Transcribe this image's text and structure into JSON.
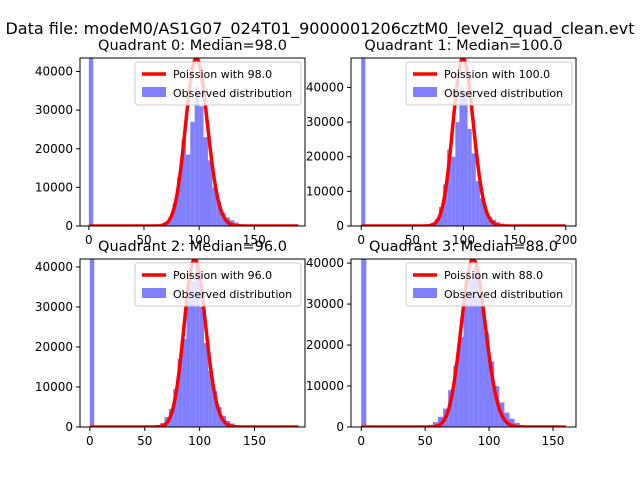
{
  "figure": {
    "suptitle": "Data file: modeM0/AS1G07_024T01_9000001206cztM0_level2_quad_clean.evt"
  },
  "colors": {
    "histogram": "#7f7fff",
    "poisson": "#ff0000",
    "axes": "#000000",
    "background": "#ffffff"
  },
  "chart_data": [
    {
      "type": "bar",
      "title": "Quadrant 0: Median=98.0",
      "median": 98.0,
      "xlim": [
        -8,
        196
      ],
      "ylim": [
        0,
        43500
      ],
      "xticks": [
        0,
        50,
        100,
        150
      ],
      "yticks": [
        0,
        10000,
        20000,
        30000,
        40000
      ],
      "bin_width": 4,
      "legend": {
        "placement": "upper right",
        "entries": [
          "Poission with 98.0",
          "Observed distribution"
        ]
      },
      "series": [
        {
          "name": "Poission with 98.0",
          "kind": "line",
          "lambda": 98.0,
          "x_range": [
            0,
            190
          ]
        },
        {
          "name": "Observed distribution",
          "kind": "histogram",
          "bins": [
            {
              "x": 0,
              "value": 43500
            },
            {
              "x": 64,
              "value": 600
            },
            {
              "x": 68,
              "value": 1000
            },
            {
              "x": 72,
              "value": 2200
            },
            {
              "x": 76,
              "value": 6000
            },
            {
              "x": 80,
              "value": 12500
            },
            {
              "x": 84,
              "value": 22500
            },
            {
              "x": 88,
              "value": 18500
            },
            {
              "x": 92,
              "value": 27000
            },
            {
              "x": 96,
              "value": 36000
            },
            {
              "x": 100,
              "value": 31000
            },
            {
              "x": 104,
              "value": 23000
            },
            {
              "x": 108,
              "value": 17000
            },
            {
              "x": 112,
              "value": 10000
            },
            {
              "x": 116,
              "value": 6500
            },
            {
              "x": 120,
              "value": 3500
            },
            {
              "x": 124,
              "value": 2200
            },
            {
              "x": 128,
              "value": 1500
            },
            {
              "x": 132,
              "value": 900
            },
            {
              "x": 136,
              "value": 500
            },
            {
              "x": 140,
              "value": 300
            },
            {
              "x": 144,
              "value": 150
            }
          ]
        }
      ]
    },
    {
      "type": "bar",
      "title": "Quadrant 1: Median=100.0",
      "median": 100.0,
      "xlim": [
        -10,
        210
      ],
      "ylim": [
        0,
        48500
      ],
      "xticks": [
        0,
        50,
        100,
        150,
        200
      ],
      "yticks": [
        0,
        10000,
        20000,
        30000,
        40000
      ],
      "bin_width": 4,
      "legend": {
        "placement": "upper right",
        "entries": [
          "Poission with 100.0",
          "Observed distribution"
        ]
      },
      "series": [
        {
          "name": "Poission with 100.0",
          "kind": "line",
          "lambda": 100.0,
          "x_range": [
            0,
            200
          ]
        },
        {
          "name": "Observed distribution",
          "kind": "histogram",
          "bins": [
            {
              "x": 0,
              "value": 48500
            },
            {
              "x": 64,
              "value": 500
            },
            {
              "x": 68,
              "value": 900
            },
            {
              "x": 72,
              "value": 2000
            },
            {
              "x": 76,
              "value": 5500
            },
            {
              "x": 80,
              "value": 12000
            },
            {
              "x": 84,
              "value": 22000
            },
            {
              "x": 88,
              "value": 20000
            },
            {
              "x": 92,
              "value": 30000
            },
            {
              "x": 96,
              "value": 40000
            },
            {
              "x": 100,
              "value": 39000
            },
            {
              "x": 104,
              "value": 28000
            },
            {
              "x": 108,
              "value": 21000
            },
            {
              "x": 112,
              "value": 13000
            },
            {
              "x": 116,
              "value": 8000
            },
            {
              "x": 120,
              "value": 4500
            },
            {
              "x": 124,
              "value": 2700
            },
            {
              "x": 128,
              "value": 1800
            },
            {
              "x": 132,
              "value": 1100
            },
            {
              "x": 136,
              "value": 700
            },
            {
              "x": 140,
              "value": 400
            },
            {
              "x": 144,
              "value": 200
            }
          ]
        }
      ]
    },
    {
      "type": "bar",
      "title": "Quadrant 2: Median=96.0",
      "median": 96.0,
      "xlim": [
        -9,
        196
      ],
      "ylim": [
        0,
        42000
      ],
      "xticks": [
        0,
        50,
        100,
        150
      ],
      "yticks": [
        0,
        10000,
        20000,
        30000,
        40000
      ],
      "bin_width": 4,
      "legend": {
        "placement": "upper right",
        "entries": [
          "Poission with 96.0",
          "Observed distribution"
        ]
      },
      "series": [
        {
          "name": "Poission with 96.0",
          "kind": "line",
          "lambda": 96.0,
          "x_range": [
            0,
            190
          ]
        },
        {
          "name": "Observed distribution",
          "kind": "histogram",
          "bins": [
            {
              "x": 0,
              "value": 42000
            },
            {
              "x": 60,
              "value": 500
            },
            {
              "x": 64,
              "value": 1000
            },
            {
              "x": 68,
              "value": 2500
            },
            {
              "x": 72,
              "value": 4500
            },
            {
              "x": 76,
              "value": 9500
            },
            {
              "x": 80,
              "value": 17000
            },
            {
              "x": 84,
              "value": 22000
            },
            {
              "x": 88,
              "value": 35000
            },
            {
              "x": 92,
              "value": 36500
            },
            {
              "x": 96,
              "value": 40000
            },
            {
              "x": 100,
              "value": 30000
            },
            {
              "x": 104,
              "value": 21000
            },
            {
              "x": 108,
              "value": 14000
            },
            {
              "x": 112,
              "value": 9000
            },
            {
              "x": 116,
              "value": 5000
            },
            {
              "x": 120,
              "value": 2800
            },
            {
              "x": 124,
              "value": 1500
            },
            {
              "x": 128,
              "value": 900
            },
            {
              "x": 132,
              "value": 500
            },
            {
              "x": 136,
              "value": 300
            }
          ]
        }
      ]
    },
    {
      "type": "bar",
      "title": "Quadrant 3: Median=88.0",
      "median": 88.0,
      "xlim": [
        -8,
        168
      ],
      "ylim": [
        0,
        41000
      ],
      "xticks": [
        0,
        50,
        100,
        150
      ],
      "yticks": [
        0,
        10000,
        20000,
        30000,
        40000
      ],
      "bin_width": 4,
      "legend": {
        "placement": "upper right",
        "entries": [
          "Poission with 88.0",
          "Observed distribution"
        ]
      },
      "series": [
        {
          "name": "Poission with 88.0",
          "kind": "line",
          "lambda": 88.0,
          "x_range": [
            0,
            160
          ]
        },
        {
          "name": "Observed distribution",
          "kind": "histogram",
          "bins": [
            {
              "x": 0,
              "value": 41000
            },
            {
              "x": 52,
              "value": 500
            },
            {
              "x": 56,
              "value": 1200
            },
            {
              "x": 60,
              "value": 2500
            },
            {
              "x": 64,
              "value": 4500
            },
            {
              "x": 68,
              "value": 9000
            },
            {
              "x": 72,
              "value": 15000
            },
            {
              "x": 76,
              "value": 22000
            },
            {
              "x": 80,
              "value": 33000
            },
            {
              "x": 84,
              "value": 36000
            },
            {
              "x": 88,
              "value": 39000
            },
            {
              "x": 92,
              "value": 32000
            },
            {
              "x": 96,
              "value": 23000
            },
            {
              "x": 100,
              "value": 16000
            },
            {
              "x": 104,
              "value": 10000
            },
            {
              "x": 108,
              "value": 6000
            },
            {
              "x": 112,
              "value": 3500
            },
            {
              "x": 116,
              "value": 2000
            },
            {
              "x": 120,
              "value": 1000
            },
            {
              "x": 124,
              "value": 500
            },
            {
              "x": 128,
              "value": 200
            }
          ]
        }
      ]
    }
  ]
}
